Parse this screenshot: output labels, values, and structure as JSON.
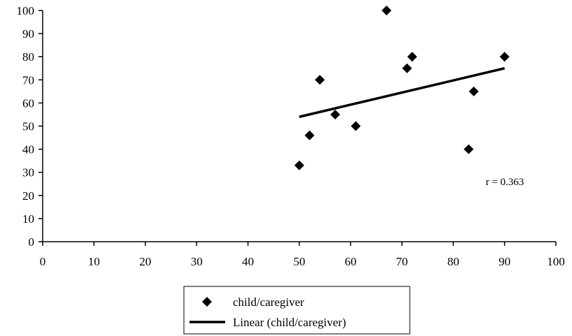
{
  "chart_data": {
    "type": "scatter",
    "xlim": [
      0,
      100
    ],
    "ylim": [
      0,
      100
    ],
    "x_ticks": [
      0,
      10,
      20,
      30,
      40,
      50,
      60,
      70,
      80,
      90,
      100
    ],
    "y_ticks": [
      0,
      10,
      20,
      30,
      40,
      50,
      60,
      70,
      80,
      90,
      100
    ],
    "grid": false,
    "legend_position": "bottom-center",
    "series": [
      {
        "name": "child/caregiver",
        "marker": "diamond",
        "color": "#000000",
        "points": [
          {
            "x": 50,
            "y": 33
          },
          {
            "x": 52,
            "y": 46
          },
          {
            "x": 54,
            "y": 70
          },
          {
            "x": 57,
            "y": 55
          },
          {
            "x": 61,
            "y": 50
          },
          {
            "x": 67,
            "y": 100
          },
          {
            "x": 71,
            "y": 75
          },
          {
            "x": 72,
            "y": 80
          },
          {
            "x": 83,
            "y": 40
          },
          {
            "x": 84,
            "y": 65
          },
          {
            "x": 90,
            "y": 80
          }
        ]
      },
      {
        "name": "Linear (child/caregiver)",
        "type": "line",
        "color": "#000000",
        "points": [
          {
            "x": 50,
            "y": 54
          },
          {
            "x": 90,
            "y": 75
          }
        ]
      }
    ],
    "annotations": [
      {
        "text": "r = 0.363",
        "x": 90,
        "y": 26
      }
    ]
  }
}
